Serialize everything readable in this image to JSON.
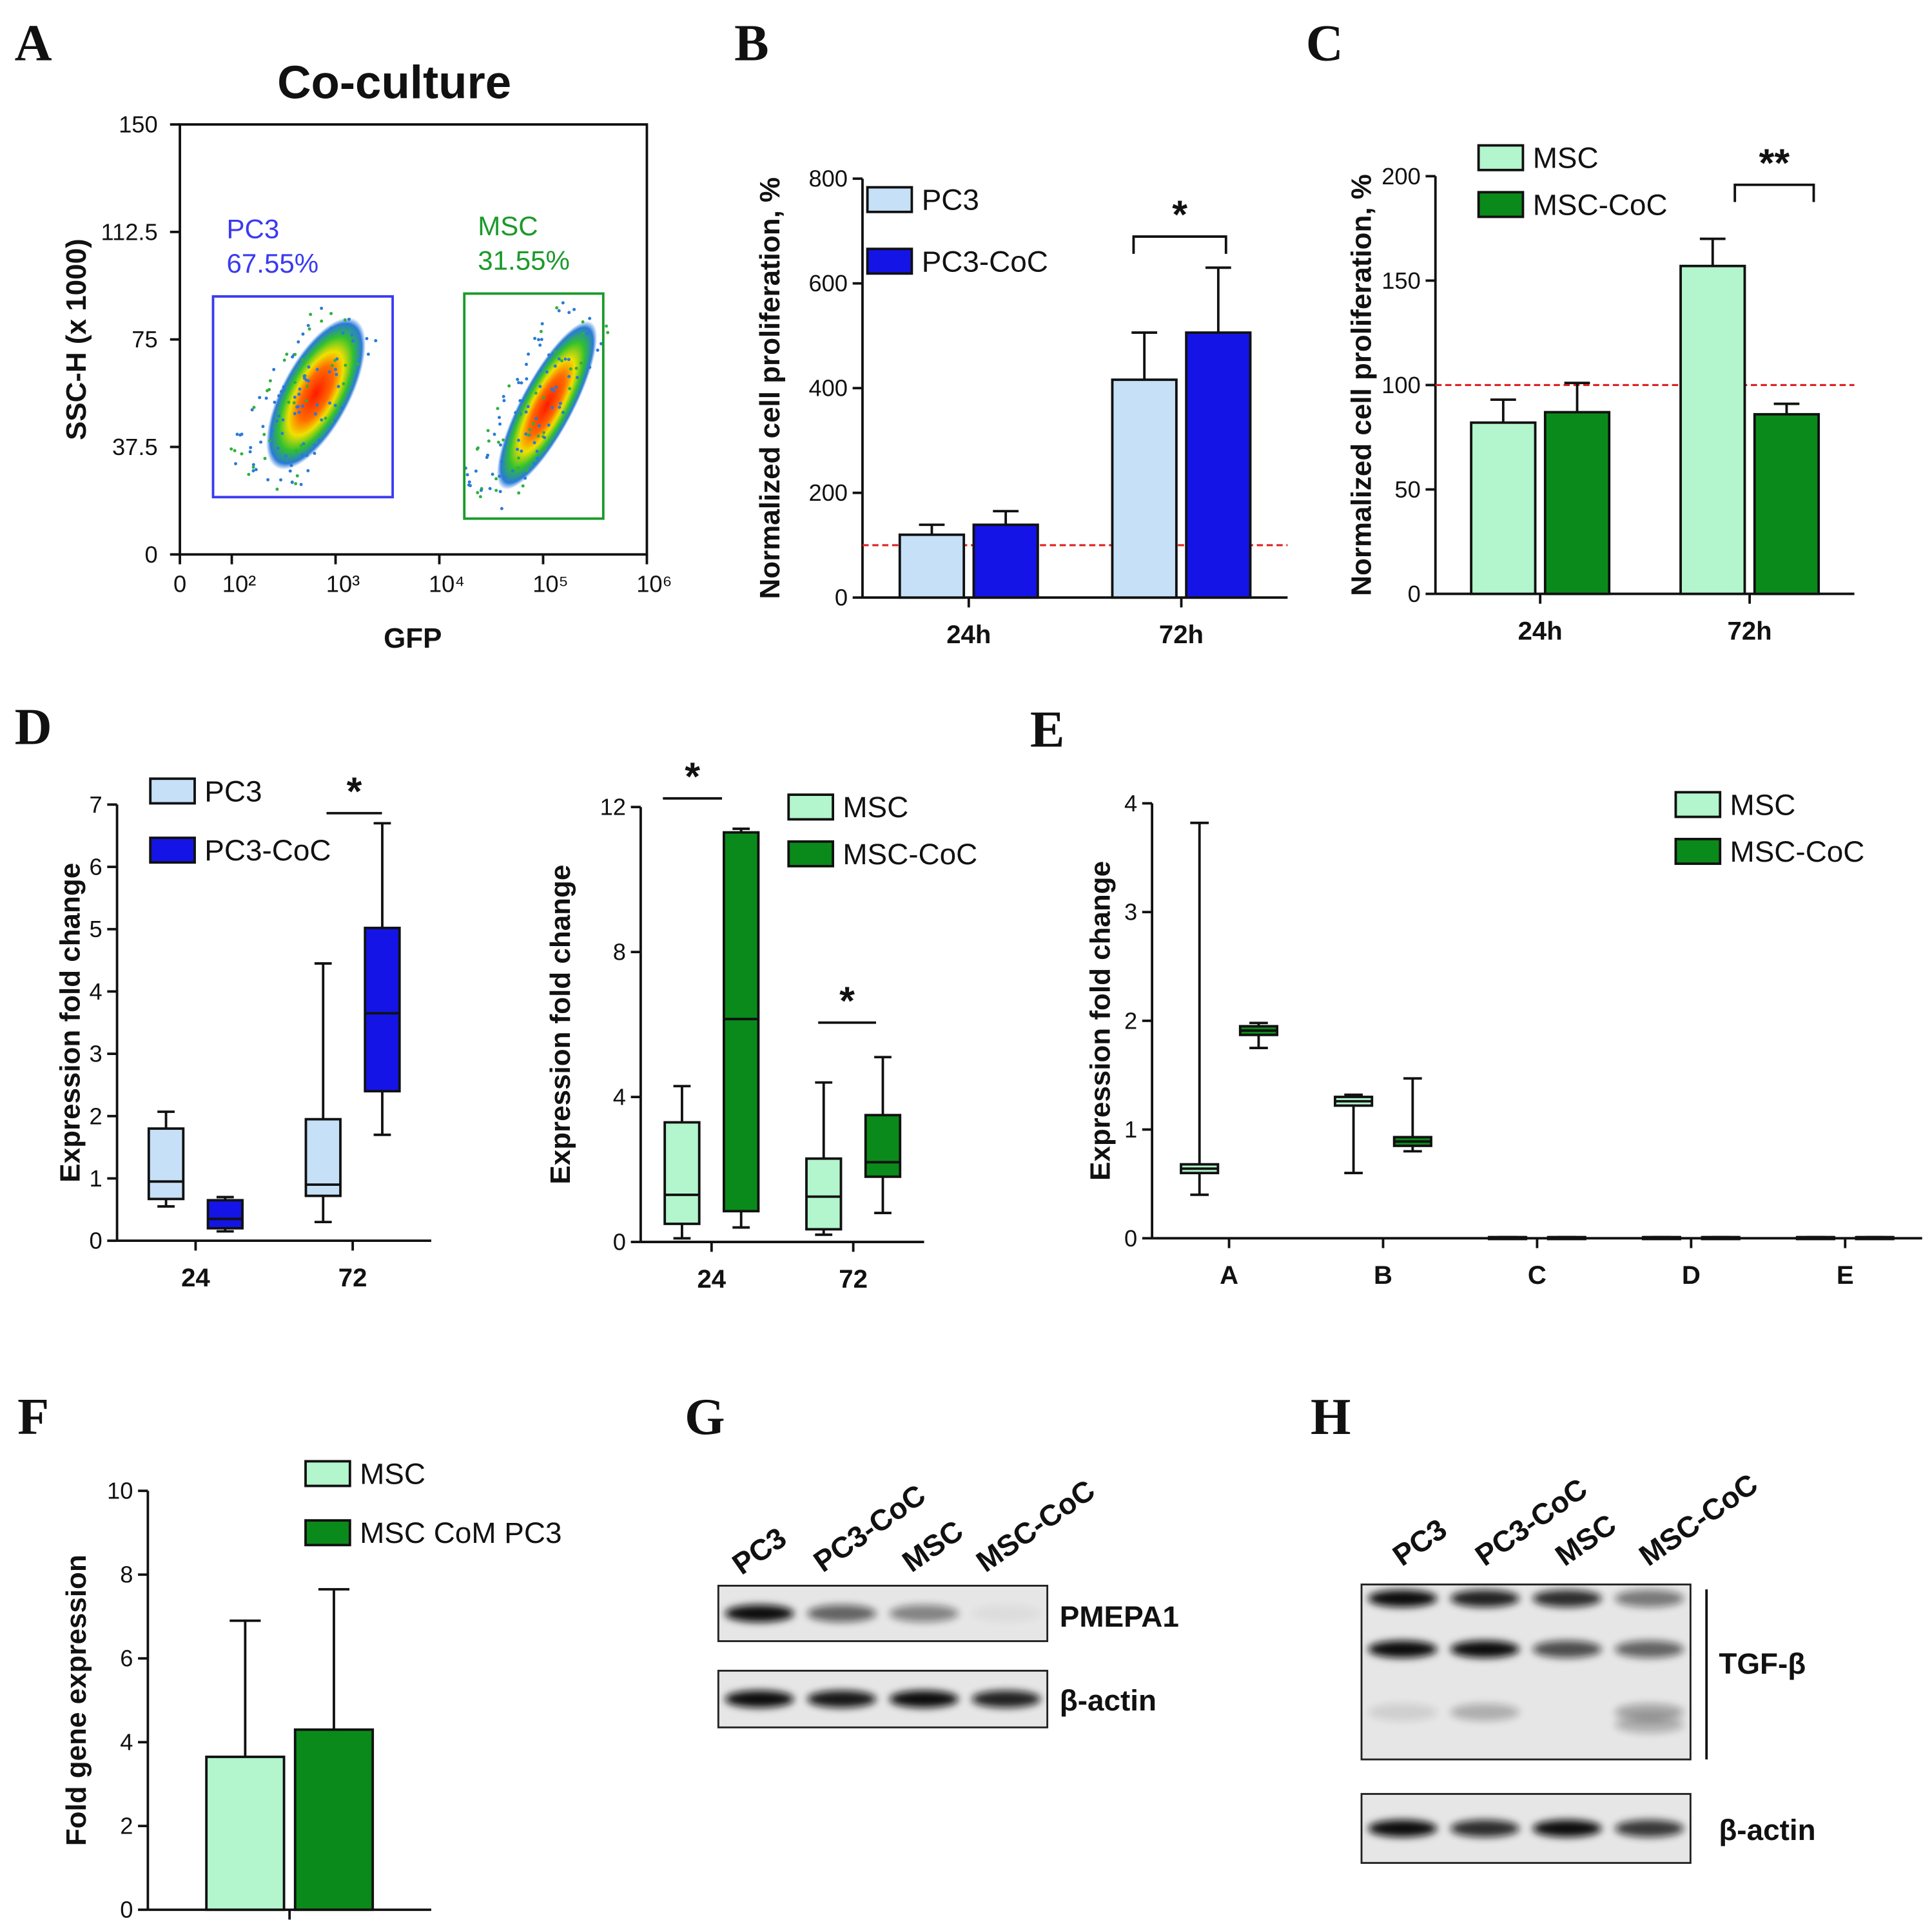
{
  "chart_data": [
    {
      "panel": "A",
      "type": "flow",
      "title": "Co-culture",
      "xlabel": "GFP",
      "ylabel": "SSC-H (x 1000)",
      "xlim": [
        0,
        1000000
      ],
      "xscale": "log",
      "xticks": [
        0,
        {
          "value": 100,
          "label": "10²"
        },
        {
          "value": 1000,
          "label": "10³"
        },
        {
          "value": 10000,
          "label": "10⁴"
        },
        {
          "value": 100000,
          "label": "10⁵"
        },
        {
          "value": 1000000,
          "label": "10⁶"
        }
      ],
      "ylim": [
        0,
        150
      ],
      "yticks": [
        0,
        37.5,
        75,
        112.5,
        150
      ],
      "gates": [
        {
          "name": "PC3",
          "label": "67.55%",
          "color": "#3a3af0",
          "x": [
            66,
            3550
          ],
          "y": [
            20,
            90
          ]
        },
        {
          "name": "MSC",
          "label": "31.55%",
          "color": "#1a9a2a",
          "x": [
            17400,
            380000
          ],
          "y": [
            12.5,
            91
          ]
        }
      ]
    },
    {
      "panel": "B",
      "type": "bar",
      "ylabel": "Normalized cell proliferation, %",
      "categories": [
        "24h",
        "72h"
      ],
      "ylim": [
        0,
        800
      ],
      "yticks": [
        0,
        200,
        400,
        600,
        800
      ],
      "reference_line": {
        "value": 100,
        "color": "#e02020"
      },
      "series": [
        {
          "name": "PC3",
          "color": "#c5e0f7",
          "values": [
            120,
            416
          ],
          "errors": [
            19,
            90
          ]
        },
        {
          "name": "PC3-CoC",
          "color": "#1414e6",
          "values": [
            139,
            506
          ],
          "errors": [
            26,
            124
          ]
        }
      ],
      "annotations": [
        {
          "text": "*"
        }
      ]
    },
    {
      "panel": "C",
      "type": "bar",
      "ylabel": "Normalized cell proliferation, %",
      "categories": [
        "24h",
        "72h"
      ],
      "ylim": [
        0,
        200
      ],
      "yticks": [
        0,
        50,
        100,
        150,
        200
      ],
      "reference_line": {
        "value": 100,
        "color": "#e02020"
      },
      "series": [
        {
          "name": "MSC",
          "color": "#b3f5cc",
          "values": [
            82,
            157
          ],
          "errors": [
            11,
            13
          ]
        },
        {
          "name": "MSC-CoC",
          "color": "#0a8a1a",
          "values": [
            87,
            86
          ],
          "errors": [
            14,
            5
          ]
        }
      ],
      "annotations": [
        {
          "text": "**"
        }
      ]
    },
    {
      "panel": "D",
      "type": "box",
      "ylabel": "Expression fold change",
      "categories": [
        "24",
        "72"
      ],
      "ylim": [
        0,
        7
      ],
      "yticks": [
        0,
        1,
        2,
        3,
        4,
        5,
        6,
        7
      ],
      "series": [
        {
          "name": "PC3",
          "color": "#c5e0f7",
          "values": [
            [
              0.55,
              0.67,
              0.95,
              1.8,
              2.07
            ],
            [
              0.3,
              0.72,
              0.9,
              1.95,
              4.45
            ]
          ]
        },
        {
          "name": "PC3-CoC",
          "color": "#1414e6",
          "values": [
            [
              0.15,
              0.2,
              0.35,
              0.65,
              0.7
            ],
            [
              1.7,
              2.4,
              3.65,
              5.02,
              6.7
            ]
          ]
        }
      ],
      "annotations": [
        {
          "text": "*"
        }
      ]
    },
    {
      "type": "box",
      "ylabel": "Expression fold change",
      "categories": [
        "24",
        "72"
      ],
      "ylim": [
        0,
        12
      ],
      "yticks": [
        0,
        4,
        8,
        12
      ],
      "series": [
        {
          "name": "MSC",
          "color": "#b3f5cc",
          "values": [
            [
              0.1,
              0.5,
              1.3,
              3.3,
              4.3
            ],
            [
              0.2,
              0.35,
              1.25,
              2.3,
              4.4
            ]
          ]
        },
        {
          "name": "MSC-CoC",
          "color": "#0a8a1a",
          "values": [
            [
              0.4,
              0.85,
              6.15,
              11.3,
              11.4
            ],
            [
              0.8,
              1.8,
              2.2,
              3.5,
              5.1
            ]
          ]
        }
      ],
      "annotations": [
        {
          "text": "*"
        },
        {
          "text": "*"
        }
      ]
    },
    {
      "panel": "E",
      "type": "box",
      "ylabel": "Expression fold change",
      "categories": [
        "A",
        "B",
        "C",
        "D",
        "E"
      ],
      "ylim": [
        0,
        4
      ],
      "yticks": [
        0,
        1,
        2,
        3,
        4
      ],
      "series": [
        {
          "name": "MSC",
          "color": "#b3f5cc",
          "values": [
            [
              0.4,
              0.6,
              0.64,
              0.68,
              3.82
            ],
            [
              0.6,
              1.22,
              1.26,
              1.3,
              1.32
            ],
            [
              0.01,
              0.01,
              0.01,
              0.01,
              0.01
            ],
            [
              0.01,
              0.01,
              0.01,
              0.01,
              0.01
            ],
            [
              0.01,
              0.01,
              0.01,
              0.01,
              0.01
            ]
          ]
        },
        {
          "name": "MSC-CoC",
          "color": "#0a8a1a",
          "values": [
            [
              1.75,
              1.87,
              1.91,
              1.95,
              1.98
            ],
            [
              0.8,
              0.85,
              0.89,
              0.93,
              1.47
            ],
            [
              0.01,
              0.01,
              0.01,
              0.01,
              0.01
            ],
            [
              0.01,
              0.01,
              0.01,
              0.01,
              0.01
            ],
            [
              0.01,
              0.01,
              0.01,
              0.01,
              0.01
            ]
          ]
        }
      ]
    },
    {
      "panel": "F",
      "type": "bar",
      "ylabel": "Fold gene expression",
      "categories": [
        null
      ],
      "ylim": [
        0,
        10
      ],
      "yticks": [
        0,
        2,
        4,
        6,
        8,
        10
      ],
      "series": [
        {
          "name": "MSC",
          "color": "#b3f5cc",
          "values": [
            3.65
          ],
          "errors": [
            3.25
          ]
        },
        {
          "name": "MSC CoM PC3",
          "color": "#0a8a1a",
          "values": [
            4.3
          ],
          "errors": [
            3.35
          ]
        }
      ]
    }
  ],
  "blots": [
    {
      "panel": "G",
      "lanes": [
        "PC3",
        "PC3-CoC",
        "MSC",
        "MSC-CoC"
      ],
      "bands": [
        "PMEPA1",
        "β-actin"
      ]
    },
    {
      "panel": "H",
      "lanes": [
        "PC3",
        "PC3-CoC",
        "MSC",
        "MSC-CoC"
      ],
      "bands": [
        "TGF-β",
        "β-actin"
      ]
    }
  ]
}
